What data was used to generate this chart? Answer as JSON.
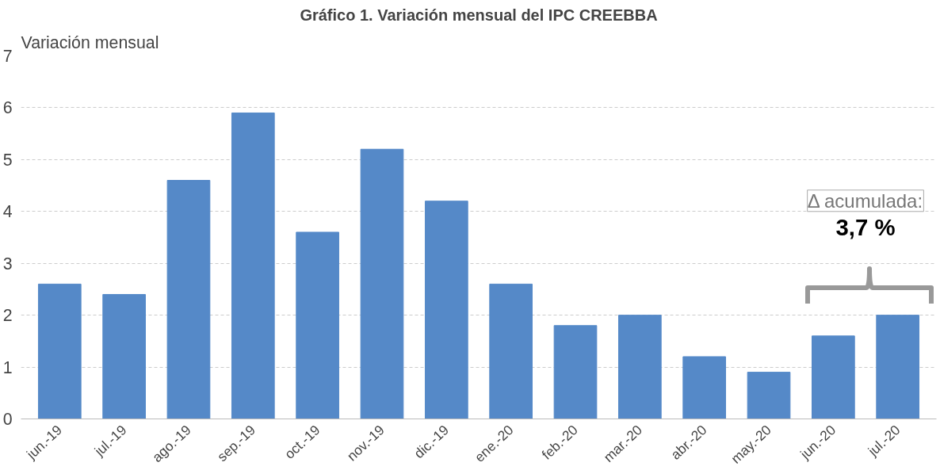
{
  "chart_data": {
    "type": "bar",
    "title": "Gráfico 1. Variación mensual del IPC CREEBBA",
    "ylabel": "Variación mensual",
    "categories": [
      "jun.-19",
      "jul.-19",
      "ago.-19",
      "sep.-19",
      "oct.-19",
      "nov.-19",
      "dic.-19",
      "ene.-20",
      "feb.-20",
      "mar.-20",
      "abr.-20",
      "may.-20",
      "jun.-20",
      "jul.-20"
    ],
    "values": [
      2.6,
      2.4,
      4.6,
      5.9,
      3.6,
      5.2,
      4.2,
      2.6,
      1.8,
      2.0,
      1.2,
      0.9,
      1.6,
      2.0
    ],
    "color": "#5589c8",
    "ylim": [
      0,
      7
    ],
    "yticks": [
      0,
      1,
      2,
      3,
      4,
      5,
      6,
      7
    ],
    "grid": "y",
    "annotations": [
      "Δ acumulada:",
      "3,7 %"
    ]
  }
}
